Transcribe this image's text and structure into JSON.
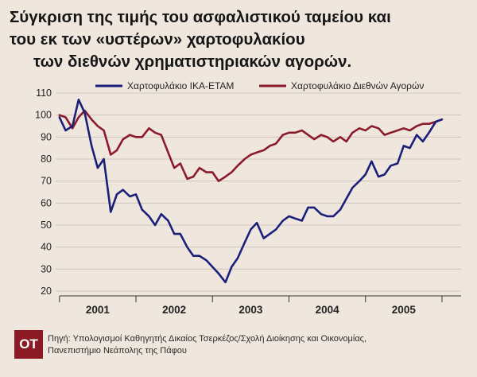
{
  "title": {
    "line1": "Σύγκριση της τιμής του ασφαλιστικού ταμείου και",
    "line2": "του εκ των «υστέρων» χαρτοφυλακίου",
    "line3": "των διεθνών χρηματιστηριακών αγορών."
  },
  "footer": {
    "badge": "ΟΤ",
    "source_line1": "Πηγή: Υπολογισμοί Καθηγητής Δικαίος Τσερκέζος/Σχολή Διοίκησης και Οικονομίας,",
    "source_line2": "Πανεπιστήμιο Νεάπολης της Πάφου"
  },
  "colors": {
    "background": "#efe7de",
    "ika": "#1a1f7a",
    "international": "#8b1a2b",
    "grid": "#c9c1b8",
    "badge": "#8b1a25"
  },
  "chart_data": {
    "type": "line",
    "title": "",
    "xlabel": "",
    "ylabel": "",
    "ylim": [
      20,
      110
    ],
    "yticks": [
      20,
      30,
      40,
      50,
      60,
      70,
      80,
      90,
      100,
      110
    ],
    "xlim": [
      2000.45,
      2005.75
    ],
    "xticks": [
      "2001",
      "2002",
      "2003",
      "2004",
      "2005"
    ],
    "xtick_positions": [
      2001,
      2002,
      2003,
      2004,
      2005
    ],
    "grid": "horizontal",
    "legend": "top",
    "series": [
      {
        "name": "Χαρτοφυλάκιο ΙΚΑ-ΕΤΑΜ",
        "color": "#1a1f7a",
        "x": [
          2000.5,
          2000.58,
          2000.67,
          2000.75,
          2000.83,
          2000.92,
          2001.0,
          2001.08,
          2001.17,
          2001.25,
          2001.33,
          2001.42,
          2001.5,
          2001.58,
          2001.67,
          2001.75,
          2001.83,
          2001.92,
          2002.0,
          2002.08,
          2002.17,
          2002.25,
          2002.33,
          2002.42,
          2002.5,
          2002.58,
          2002.67,
          2002.75,
          2002.83,
          2002.92,
          2003.0,
          2003.08,
          2003.17,
          2003.25,
          2003.33,
          2003.42,
          2003.5,
          2003.58,
          2003.67,
          2003.75,
          2003.83,
          2003.92,
          2004.0,
          2004.08,
          2004.17,
          2004.25,
          2004.33,
          2004.42,
          2004.5,
          2004.58,
          2004.67,
          2004.75,
          2004.83,
          2004.92,
          2005.0,
          2005.08,
          2005.17,
          2005.25,
          2005.33,
          2005.42,
          2005.5
        ],
        "y": [
          99,
          93,
          95,
          107,
          101,
          86,
          76,
          80,
          56,
          64,
          66,
          63,
          64,
          57,
          54,
          50,
          55,
          52,
          46,
          46,
          40,
          36,
          36,
          34,
          31,
          28,
          24,
          31,
          35,
          42,
          48,
          51,
          44,
          46,
          48,
          52,
          54,
          53,
          52,
          58,
          58,
          55,
          54,
          54,
          57,
          62,
          67,
          70,
          73,
          79,
          72,
          73,
          77,
          78,
          86,
          85,
          91,
          88,
          92,
          97,
          98
        ]
      },
      {
        "name": "Χαρτοφυλάκιο Διεθνών Αγορών",
        "color": "#8b1a2b",
        "x": [
          2000.5,
          2000.58,
          2000.67,
          2000.75,
          2000.83,
          2000.92,
          2001.0,
          2001.08,
          2001.17,
          2001.25,
          2001.33,
          2001.42,
          2001.5,
          2001.58,
          2001.67,
          2001.75,
          2001.83,
          2001.92,
          2002.0,
          2002.08,
          2002.17,
          2002.25,
          2002.33,
          2002.42,
          2002.5,
          2002.58,
          2002.67,
          2002.75,
          2002.83,
          2002.92,
          2003.0,
          2003.08,
          2003.17,
          2003.25,
          2003.33,
          2003.42,
          2003.5,
          2003.58,
          2003.67,
          2003.75,
          2003.83,
          2003.92,
          2004.0,
          2004.08,
          2004.17,
          2004.25,
          2004.33,
          2004.42,
          2004.5,
          2004.58,
          2004.67,
          2004.75,
          2004.83,
          2004.92,
          2005.0,
          2005.08,
          2005.17,
          2005.25,
          2005.33,
          2005.42,
          2005.5
        ],
        "y": [
          100,
          99,
          94,
          99,
          102,
          98,
          95,
          93,
          82,
          84,
          89,
          91,
          90,
          90,
          94,
          92,
          91,
          83,
          76,
          78,
          71,
          72,
          76,
          74,
          74,
          70,
          72,
          74,
          77,
          80,
          82,
          83,
          84,
          86,
          87,
          91,
          92,
          92,
          93,
          91,
          89,
          91,
          90,
          88,
          90,
          88,
          92,
          94,
          93,
          95,
          94,
          91,
          92,
          93,
          94,
          93,
          95,
          96,
          96,
          97,
          98
        ]
      }
    ]
  }
}
